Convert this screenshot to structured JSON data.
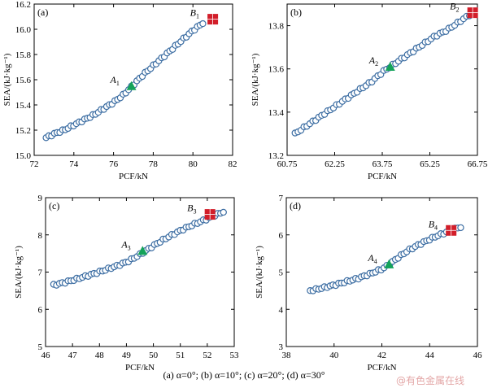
{
  "figure": {
    "caption": "(a) α=0°; (b) α=10°; (c) α=20°; (d) α=30°",
    "watermark": "@有色金属在线"
  },
  "colors": {
    "marker_stroke": "#3d6ea3",
    "marker_fill": "#ffffff",
    "triangle": "#14a35a",
    "square": "#d21e2a",
    "axis": "#000000"
  },
  "chart_data": [
    {
      "type": "scatter",
      "panel_label": "(a)",
      "xlabel": "PCF/kN",
      "ylabel": "SEA/(kJ·kg⁻¹)",
      "xlim": [
        72,
        82
      ],
      "ylim": [
        15.0,
        16.2
      ],
      "xticks": [
        "72",
        "74",
        "76",
        "78",
        "80",
        "82"
      ],
      "yticks": [
        "15.0",
        "15.2",
        "15.4",
        "15.6",
        "15.8",
        "16.0",
        "16.2"
      ],
      "curve_x": [
        72.6,
        73.0,
        73.5,
        74.0,
        74.5,
        75.0,
        75.5,
        76.0,
        76.5,
        77.0,
        77.5,
        78.0,
        78.5,
        79.0,
        79.5,
        80.0,
        80.5
      ],
      "curve_y": [
        15.14,
        15.17,
        15.2,
        15.24,
        15.28,
        15.32,
        15.37,
        15.42,
        15.48,
        15.56,
        15.64,
        15.71,
        15.78,
        15.85,
        15.92,
        15.99,
        16.05
      ],
      "points": 58,
      "special": [
        {
          "name_main": "A",
          "name_sub": "1",
          "x": 76.9,
          "y": 15.55,
          "marker": "triangle"
        },
        {
          "name_main": "B",
          "name_sub": "1",
          "x": 81.0,
          "y": 16.08,
          "marker": "square"
        }
      ]
    },
    {
      "type": "scatter",
      "panel_label": "(b)",
      "xlabel": "PCF/kN",
      "ylabel": "SEA/(kJ·kg⁻¹)",
      "xlim": [
        60.75,
        66.75
      ],
      "ylim": [
        13.2,
        13.9
      ],
      "xticks": [
        "60.75",
        "62.25",
        "63.75",
        "65.25",
        "66.75"
      ],
      "yticks": [
        "13.2",
        "13.4",
        "13.6",
        "13.8"
      ],
      "curve_x": [
        61.0,
        61.4,
        61.8,
        62.2,
        62.6,
        63.0,
        63.4,
        63.8,
        64.2,
        64.6,
        65.0,
        65.4,
        65.8,
        66.2,
        66.5
      ],
      "curve_y": [
        13.3,
        13.34,
        13.38,
        13.42,
        13.46,
        13.5,
        13.54,
        13.59,
        13.63,
        13.67,
        13.71,
        13.75,
        13.78,
        13.82,
        13.85
      ],
      "points": 60,
      "special": [
        {
          "name_main": "A",
          "name_sub": "2",
          "x": 64.0,
          "y": 13.61,
          "marker": "triangle"
        },
        {
          "name_main": "B",
          "name_sub": "2",
          "x": 66.6,
          "y": 13.86,
          "marker": "square"
        }
      ]
    },
    {
      "type": "scatter",
      "panel_label": "(c)",
      "xlabel": "PCF/kN",
      "ylabel": "SEA/(kJ·kg⁻¹)",
      "xlim": [
        46,
        53
      ],
      "ylim": [
        5,
        9
      ],
      "xticks": [
        "46",
        "47",
        "48",
        "49",
        "50",
        "51",
        "52",
        "53"
      ],
      "yticks": [
        "5",
        "6",
        "7",
        "8",
        "9"
      ],
      "curve_x": [
        46.3,
        46.7,
        47.1,
        47.5,
        47.9,
        48.3,
        48.7,
        49.1,
        49.5,
        49.9,
        50.3,
        50.7,
        51.1,
        51.5,
        51.9,
        52.3,
        52.6
      ],
      "curve_y": [
        6.65,
        6.72,
        6.8,
        6.89,
        6.98,
        7.08,
        7.18,
        7.3,
        7.47,
        7.66,
        7.84,
        8.0,
        8.15,
        8.28,
        8.4,
        8.53,
        8.62
      ],
      "points": 60,
      "special": [
        {
          "name_main": "A",
          "name_sub": "3",
          "x": 49.6,
          "y": 7.57,
          "marker": "triangle"
        },
        {
          "name_main": "B",
          "name_sub": "3",
          "x": 52.1,
          "y": 8.55,
          "marker": "square"
        }
      ]
    },
    {
      "type": "scatter",
      "panel_label": "(d)",
      "xlabel": "PCF/kN",
      "ylabel": "SEA/(kJ·kg⁻¹)",
      "xlim": [
        38,
        46
      ],
      "ylim": [
        3,
        7
      ],
      "xticks": [
        "38",
        "40",
        "42",
        "44",
        "46"
      ],
      "yticks": [
        "3",
        "4",
        "5",
        "6",
        "7"
      ],
      "curve_x": [
        39.0,
        39.5,
        40.0,
        40.5,
        41.0,
        41.5,
        42.0,
        42.3,
        42.7,
        43.1,
        43.5,
        43.9,
        44.3,
        44.7,
        45.0,
        45.3
      ],
      "curve_y": [
        4.5,
        4.57,
        4.65,
        4.74,
        4.83,
        4.95,
        5.08,
        5.2,
        5.4,
        5.58,
        5.72,
        5.85,
        5.97,
        6.07,
        6.15,
        6.21
      ],
      "points": 54,
      "special": [
        {
          "name_main": "A",
          "name_sub": "4",
          "x": 42.3,
          "y": 5.21,
          "marker": "triangle"
        },
        {
          "name_main": "B",
          "name_sub": "4",
          "x": 44.9,
          "y": 6.12,
          "marker": "square"
        }
      ]
    }
  ]
}
